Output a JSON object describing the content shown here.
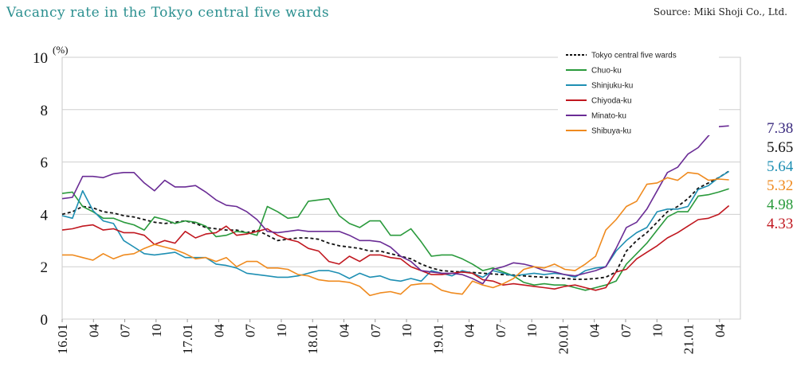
{
  "title": "Vacancy rate in the Tokyo central five wards",
  "source": "Source: Miki Shoji Co., Ltd.",
  "chart_data": {
    "type": "line",
    "ylabel_unit": "(%)",
    "ylim": [
      0,
      10
    ],
    "yticks": [
      "0",
      "2",
      "4",
      "6",
      "8",
      "10"
    ],
    "xlim": [
      0,
      63
    ],
    "xticks": [
      {
        "label": "16.01",
        "x": 0
      },
      {
        "label": "04",
        "x": 3
      },
      {
        "label": "07",
        "x": 6
      },
      {
        "label": "10",
        "x": 9
      },
      {
        "label": "17.01",
        "x": 12
      },
      {
        "label": "04",
        "x": 15
      },
      {
        "label": "07",
        "x": 18
      },
      {
        "label": "10",
        "x": 21
      },
      {
        "label": "18.01",
        "x": 24
      },
      {
        "label": "04",
        "x": 27
      },
      {
        "label": "07",
        "x": 30
      },
      {
        "label": "10",
        "x": 33
      },
      {
        "label": "19.01",
        "x": 36
      },
      {
        "label": "04",
        "x": 39
      },
      {
        "label": "07",
        "x": 42
      },
      {
        "label": "10",
        "x": 45
      },
      {
        "label": "20.01",
        "x": 48
      },
      {
        "label": "04",
        "x": 51
      },
      {
        "label": "07",
        "x": 54
      },
      {
        "label": "10",
        "x": 57
      },
      {
        "label": "21.01",
        "x": 60
      },
      {
        "label": "04",
        "x": 63
      }
    ],
    "grid": "horizontal",
    "legend_position": "top-right",
    "series": [
      {
        "name": "Tokyo central five wards",
        "color": "#111111",
        "dash": true,
        "values": [
          4.0,
          4.1,
          4.3,
          4.25,
          4.1,
          4.05,
          3.95,
          3.9,
          3.8,
          3.7,
          3.65,
          3.7,
          3.75,
          3.65,
          3.5,
          3.45,
          3.4,
          3.4,
          3.3,
          3.4,
          3.2,
          3.0,
          3.05,
          3.1,
          3.1,
          3.05,
          2.9,
          2.8,
          2.75,
          2.7,
          2.6,
          2.6,
          2.5,
          2.4,
          2.3,
          2.1,
          1.95,
          1.85,
          1.82,
          1.8,
          1.78,
          1.75,
          1.72,
          1.7,
          1.68,
          1.65,
          1.62,
          1.6,
          1.58,
          1.55,
          1.52,
          1.52,
          1.55,
          1.6,
          1.8,
          2.6,
          3.0,
          3.3,
          3.7,
          4.1,
          4.3,
          4.6,
          5.0,
          5.2,
          5.4,
          5.65
        ]
      },
      {
        "name": "Chuo-ku",
        "color": "#2a9a3c",
        "dash": false,
        "values": [
          4.8,
          4.85,
          4.3,
          4.1,
          3.85,
          3.85,
          3.7,
          3.6,
          3.4,
          3.9,
          3.8,
          3.65,
          3.75,
          3.7,
          3.55,
          3.15,
          3.2,
          3.35,
          3.3,
          3.2,
          4.3,
          4.1,
          3.85,
          3.9,
          4.5,
          4.55,
          4.6,
          3.95,
          3.65,
          3.5,
          3.75,
          3.75,
          3.2,
          3.2,
          3.45,
          2.95,
          2.4,
          2.45,
          2.45,
          2.3,
          2.1,
          1.85,
          1.95,
          1.8,
          1.65,
          1.4,
          1.3,
          1.35,
          1.3,
          1.3,
          1.2,
          1.1,
          1.2,
          1.3,
          1.45,
          2.1,
          2.5,
          2.9,
          3.4,
          3.9,
          4.1,
          4.1,
          4.7,
          4.75,
          4.85,
          4.98
        ]
      },
      {
        "name": "Shinjuku-ku",
        "color": "#1e8fb3",
        "dash": false,
        "values": [
          3.95,
          3.85,
          4.9,
          4.15,
          3.75,
          3.65,
          3.0,
          2.75,
          2.5,
          2.45,
          2.5,
          2.55,
          2.35,
          2.35,
          2.35,
          2.1,
          2.05,
          1.95,
          1.75,
          1.7,
          1.65,
          1.6,
          1.6,
          1.65,
          1.75,
          1.85,
          1.85,
          1.75,
          1.55,
          1.75,
          1.6,
          1.65,
          1.5,
          1.45,
          1.55,
          1.45,
          1.85,
          1.75,
          1.65,
          1.85,
          1.75,
          1.6,
          1.85,
          1.75,
          1.65,
          1.7,
          1.75,
          1.7,
          1.75,
          1.7,
          1.6,
          1.85,
          1.95,
          2.0,
          2.6,
          3.0,
          3.3,
          3.5,
          4.1,
          4.2,
          4.2,
          4.3,
          4.95,
          5.1,
          5.4,
          5.64
        ]
      },
      {
        "name": "Chiyoda-ku",
        "color": "#c0171f",
        "dash": false,
        "values": [
          3.4,
          3.45,
          3.55,
          3.6,
          3.4,
          3.45,
          3.3,
          3.3,
          3.2,
          2.85,
          3.0,
          2.9,
          3.35,
          3.1,
          3.25,
          3.3,
          3.55,
          3.2,
          3.25,
          3.35,
          3.45,
          3.2,
          3.05,
          2.95,
          2.7,
          2.6,
          2.2,
          2.1,
          2.4,
          2.2,
          2.45,
          2.45,
          2.35,
          2.3,
          2.0,
          1.85,
          1.7,
          1.7,
          1.75,
          1.8,
          1.75,
          1.5,
          1.45,
          1.3,
          1.35,
          1.3,
          1.25,
          1.2,
          1.15,
          1.25,
          1.3,
          1.2,
          1.1,
          1.2,
          1.8,
          1.9,
          2.3,
          2.55,
          2.8,
          3.1,
          3.3,
          3.55,
          3.8,
          3.85,
          4.0,
          4.33
        ]
      },
      {
        "name": "Minato-ku",
        "color": "#6a2c95",
        "dash": false,
        "values": [
          4.6,
          4.65,
          5.45,
          5.45,
          5.4,
          5.55,
          5.6,
          5.6,
          5.2,
          4.9,
          5.3,
          5.05,
          5.05,
          5.1,
          4.85,
          4.55,
          4.35,
          4.3,
          4.1,
          3.8,
          3.35,
          3.3,
          3.35,
          3.4,
          3.35,
          3.35,
          3.35,
          3.35,
          3.2,
          3.0,
          3.0,
          2.95,
          2.75,
          2.4,
          2.2,
          1.85,
          1.8,
          1.75,
          1.75,
          1.7,
          1.55,
          1.35,
          1.9,
          2.0,
          2.15,
          2.1,
          2.0,
          1.85,
          1.8,
          1.7,
          1.65,
          1.75,
          1.85,
          2.0,
          2.7,
          3.5,
          3.7,
          4.2,
          4.9,
          5.6,
          5.8,
          6.3,
          6.55,
          7.0,
          7.35,
          7.38
        ]
      },
      {
        "name": "Shibuya-ku",
        "color": "#ef8a1e",
        "dash": false,
        "values": [
          2.45,
          2.45,
          2.35,
          2.25,
          2.5,
          2.3,
          2.45,
          2.5,
          2.7,
          2.85,
          2.75,
          2.65,
          2.5,
          2.3,
          2.35,
          2.2,
          2.35,
          2.0,
          2.2,
          2.2,
          1.95,
          1.95,
          1.9,
          1.7,
          1.65,
          1.5,
          1.45,
          1.45,
          1.4,
          1.25,
          0.9,
          1.0,
          1.05,
          0.95,
          1.3,
          1.35,
          1.35,
          1.1,
          1.0,
          0.95,
          1.45,
          1.3,
          1.2,
          1.35,
          1.55,
          1.9,
          2.0,
          1.95,
          2.1,
          1.9,
          1.85,
          2.1,
          2.4,
          3.4,
          3.8,
          4.3,
          4.5,
          5.15,
          5.2,
          5.4,
          5.3,
          5.6,
          5.55,
          5.3,
          5.35,
          5.32
        ]
      }
    ],
    "end_labels": [
      {
        "text": "7.38",
        "color": "#3b2b7f"
      },
      {
        "text": "5.65",
        "color": "#111111"
      },
      {
        "text": "5.64",
        "color": "#1e8fb3"
      },
      {
        "text": "5.32",
        "color": "#ef8a1e"
      },
      {
        "text": "4.98",
        "color": "#2a9a3c"
      },
      {
        "text": "4.33",
        "color": "#c0171f"
      }
    ]
  }
}
